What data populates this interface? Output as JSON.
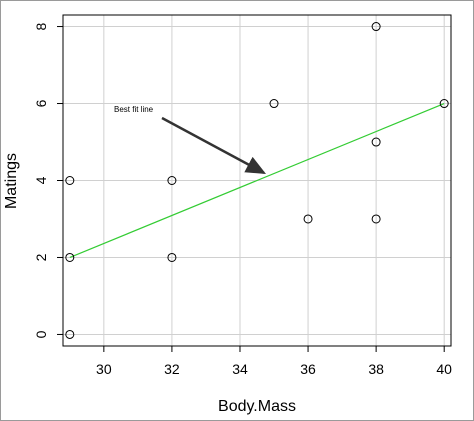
{
  "chart_data": {
    "type": "scatter",
    "title": "",
    "xlabel": "Body.Mass",
    "ylabel": "Matings",
    "xlim": [
      28.8,
      40.2
    ],
    "ylim": [
      -0.3,
      8.3
    ],
    "x_ticks": [
      30,
      32,
      34,
      36,
      38,
      40
    ],
    "y_ticks": [
      0,
      2,
      4,
      6,
      8
    ],
    "grid": true,
    "points": [
      {
        "x": 29,
        "y": 0
      },
      {
        "x": 29,
        "y": 2
      },
      {
        "x": 29,
        "y": 4
      },
      {
        "x": 32,
        "y": 2
      },
      {
        "x": 32,
        "y": 4
      },
      {
        "x": 35,
        "y": 6
      },
      {
        "x": 36,
        "y": 3
      },
      {
        "x": 38,
        "y": 3
      },
      {
        "x": 38,
        "y": 5
      },
      {
        "x": 38,
        "y": 8
      },
      {
        "x": 40,
        "y": 6
      }
    ],
    "fit_line": {
      "x": [
        29,
        40
      ],
      "y": [
        2.0,
        6.0
      ],
      "color": "#33cc33"
    },
    "annotation": {
      "text": "Best fit line",
      "arrow_to": {
        "x": 34.7,
        "y": 4.2
      }
    },
    "colors": {
      "points": "#000000",
      "grid": "#d0d0d0",
      "arrow": "#333333"
    }
  }
}
